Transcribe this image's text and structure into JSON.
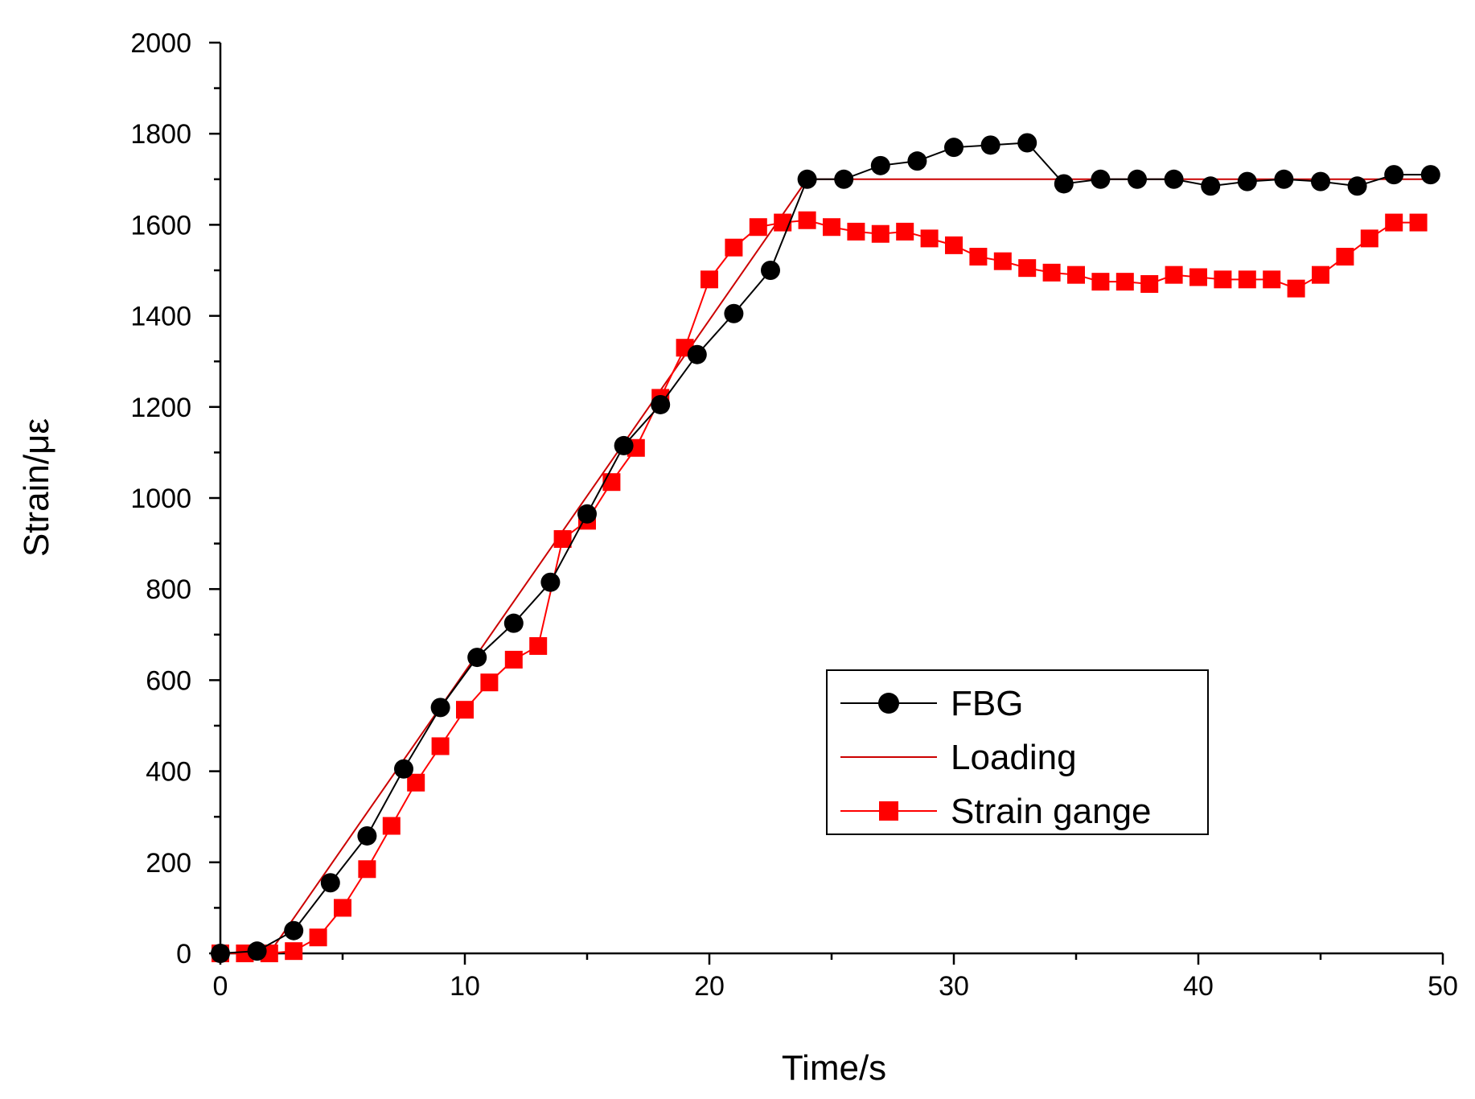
{
  "chart_data": {
    "type": "line",
    "title": "",
    "xlabel": "Time/s",
    "ylabel": "Strain/με",
    "xlim": [
      0,
      50
    ],
    "ylim": [
      0,
      2000
    ],
    "x_ticks": [
      0,
      10,
      20,
      30,
      40,
      50
    ],
    "y_ticks": [
      0,
      200,
      400,
      600,
      800,
      1000,
      1200,
      1400,
      1600,
      1800,
      2000
    ],
    "grid": false,
    "legend_position": "lower-right",
    "series": [
      {
        "name": "FBG",
        "color": "#000000",
        "marker": "circle",
        "x": [
          0,
          1.5,
          3,
          4.5,
          6,
          7.5,
          9,
          10.5,
          12,
          13.5,
          15,
          16.5,
          18,
          19.5,
          21,
          22.5,
          24,
          25.5,
          27,
          28.5,
          30,
          31.5,
          33,
          34.5,
          36,
          37.5,
          39,
          40.5,
          42,
          43.5,
          45,
          46.5,
          48,
          49.5
        ],
        "y": [
          0,
          5,
          50,
          155,
          258,
          405,
          540,
          650,
          725,
          815,
          965,
          1115,
          1205,
          1315,
          1405,
          1500,
          1700,
          1700,
          1730,
          1740,
          1770,
          1775,
          1780,
          1690,
          1700,
          1700,
          1700,
          1685,
          1695,
          1700,
          1695,
          1685,
          1710,
          1710
        ]
      },
      {
        "name": "Loading",
        "color": "#cc0000",
        "marker": "none",
        "x": [
          0,
          2,
          24,
          49.5
        ],
        "y": [
          0,
          0,
          1700,
          1700
        ]
      },
      {
        "name": "Strain gange",
        "color": "#ff0000",
        "marker": "square",
        "x": [
          0,
          1,
          2,
          3,
          4,
          5,
          6,
          7,
          8,
          9,
          10,
          11,
          12,
          13,
          14,
          15,
          16,
          17,
          18,
          19,
          20,
          21,
          22,
          23,
          24,
          25,
          26,
          27,
          28,
          29,
          30,
          31,
          32,
          33,
          34,
          35,
          36,
          37,
          38,
          39,
          40,
          41,
          42,
          43,
          44,
          45,
          46,
          47,
          48,
          49
        ],
        "y": [
          0,
          0,
          0,
          5,
          35,
          100,
          185,
          280,
          375,
          455,
          535,
          595,
          645,
          675,
          910,
          950,
          1035,
          1110,
          1220,
          1330,
          1480,
          1550,
          1595,
          1605,
          1610,
          1595,
          1585,
          1580,
          1585,
          1570,
          1555,
          1530,
          1520,
          1505,
          1495,
          1490,
          1475,
          1475,
          1470,
          1490,
          1485,
          1480,
          1480,
          1480,
          1460,
          1490,
          1530,
          1570,
          1605,
          1605
        ]
      }
    ]
  }
}
